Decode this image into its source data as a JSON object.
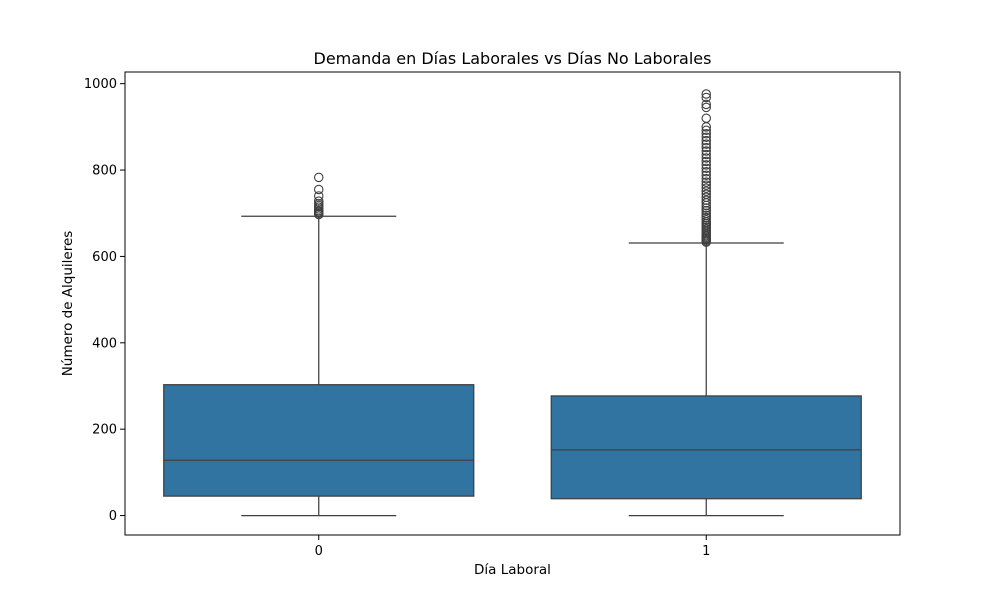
{
  "chart_data": {
    "type": "boxplot",
    "title": "Demanda en Días Laborales vs Días No Laborales",
    "xlabel": "Día Laboral",
    "ylabel": "Número de Alquileres",
    "categories": [
      "0",
      "1"
    ],
    "ylim": [
      -45,
      1027
    ],
    "yticks": [
      0,
      200,
      400,
      600,
      800,
      1000
    ],
    "box_color": "#3274a1",
    "line_color": "#3f3f3f",
    "boxes": [
      {
        "category": "0",
        "min": 0,
        "q1": 45,
        "median": 128,
        "q3": 303,
        "max": 693,
        "outliers": [
          697,
          700,
          703,
          706,
          710,
          714,
          718,
          722,
          728,
          740,
          755,
          783
        ]
      },
      {
        "category": "1",
        "min": 0,
        "q1": 39,
        "median": 152,
        "q3": 277,
        "max": 631,
        "outliers": [
          633,
          636,
          639,
          642,
          645,
          648,
          652,
          656,
          660,
          664,
          668,
          672,
          676,
          680,
          685,
          690,
          695,
          700,
          706,
          712,
          718,
          724,
          730,
          737,
          744,
          751,
          758,
          765,
          772,
          780,
          788,
          796,
          804,
          812,
          820,
          828,
          836,
          844,
          852,
          860,
          868,
          876,
          884,
          892,
          900,
          920,
          945,
          952,
          968,
          976
        ]
      }
    ]
  }
}
